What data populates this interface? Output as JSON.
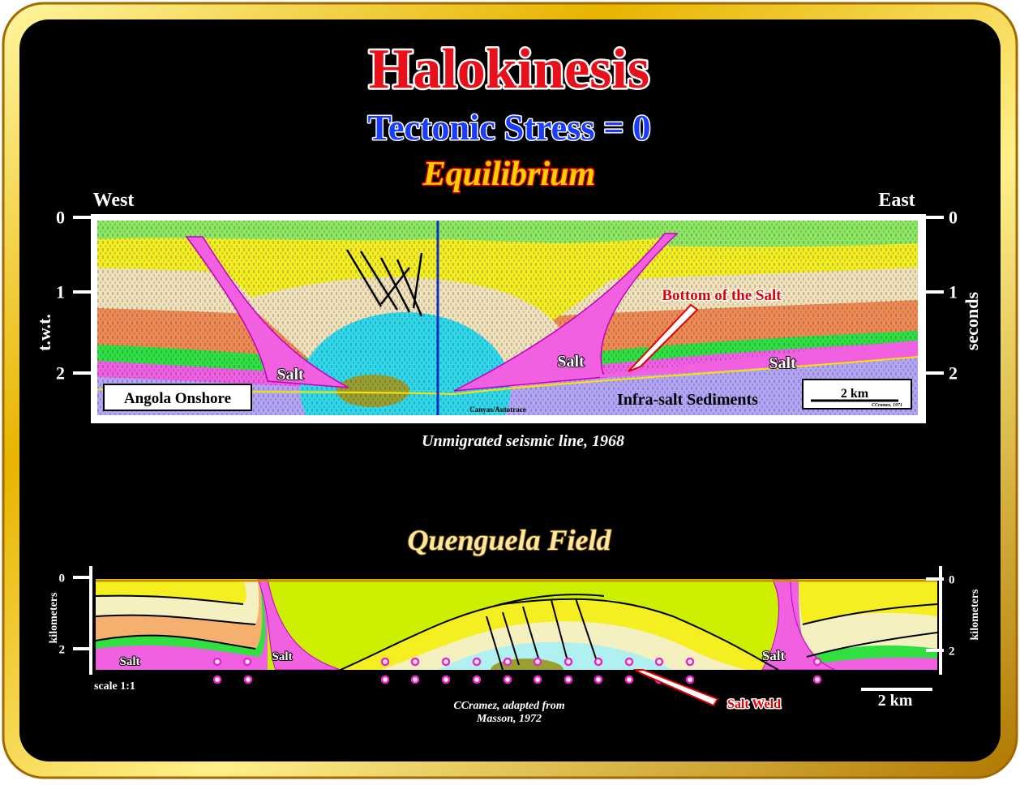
{
  "header": {
    "title": "Halokinesis",
    "subtitle": "Tectonic Stress = 0",
    "state": "Equilibrium"
  },
  "seismic": {
    "west": "West",
    "east": "East",
    "left_ticks": [
      "0",
      "1",
      "2"
    ],
    "right_ticks": [
      "0",
      "1",
      "2"
    ],
    "left_axis": "t.w.t.",
    "right_axis": "seconds",
    "labels": {
      "salt_left": "Salt",
      "salt_mid": "Salt",
      "salt_right": "Salt",
      "bottom_of_salt": "Bottom of the Salt",
      "location": "Angola Onshore",
      "infra_salt": "Infra-salt Sediments",
      "scale": "2 km",
      "credit": "CCramez, 1971",
      "autotrace": "Canyas/Autotrace"
    },
    "caption": "Unmigrated seismic line, 1968"
  },
  "field": {
    "title": "Quenguela Field",
    "left_ticks": [
      "0",
      "2"
    ],
    "right_ticks": [
      "0",
      "2"
    ],
    "left_axis": "kilometers",
    "right_axis": "kilometers",
    "labels": {
      "salt_left": "Salt",
      "salt_mid": "Salt",
      "salt_right": "Salt",
      "scale_ratio": "scale 1:1",
      "salt_weld": "Salt Weld",
      "scale": "2 km"
    },
    "credit": [
      "CCramez, adapted from",
      "Masson, 1972"
    ]
  }
}
